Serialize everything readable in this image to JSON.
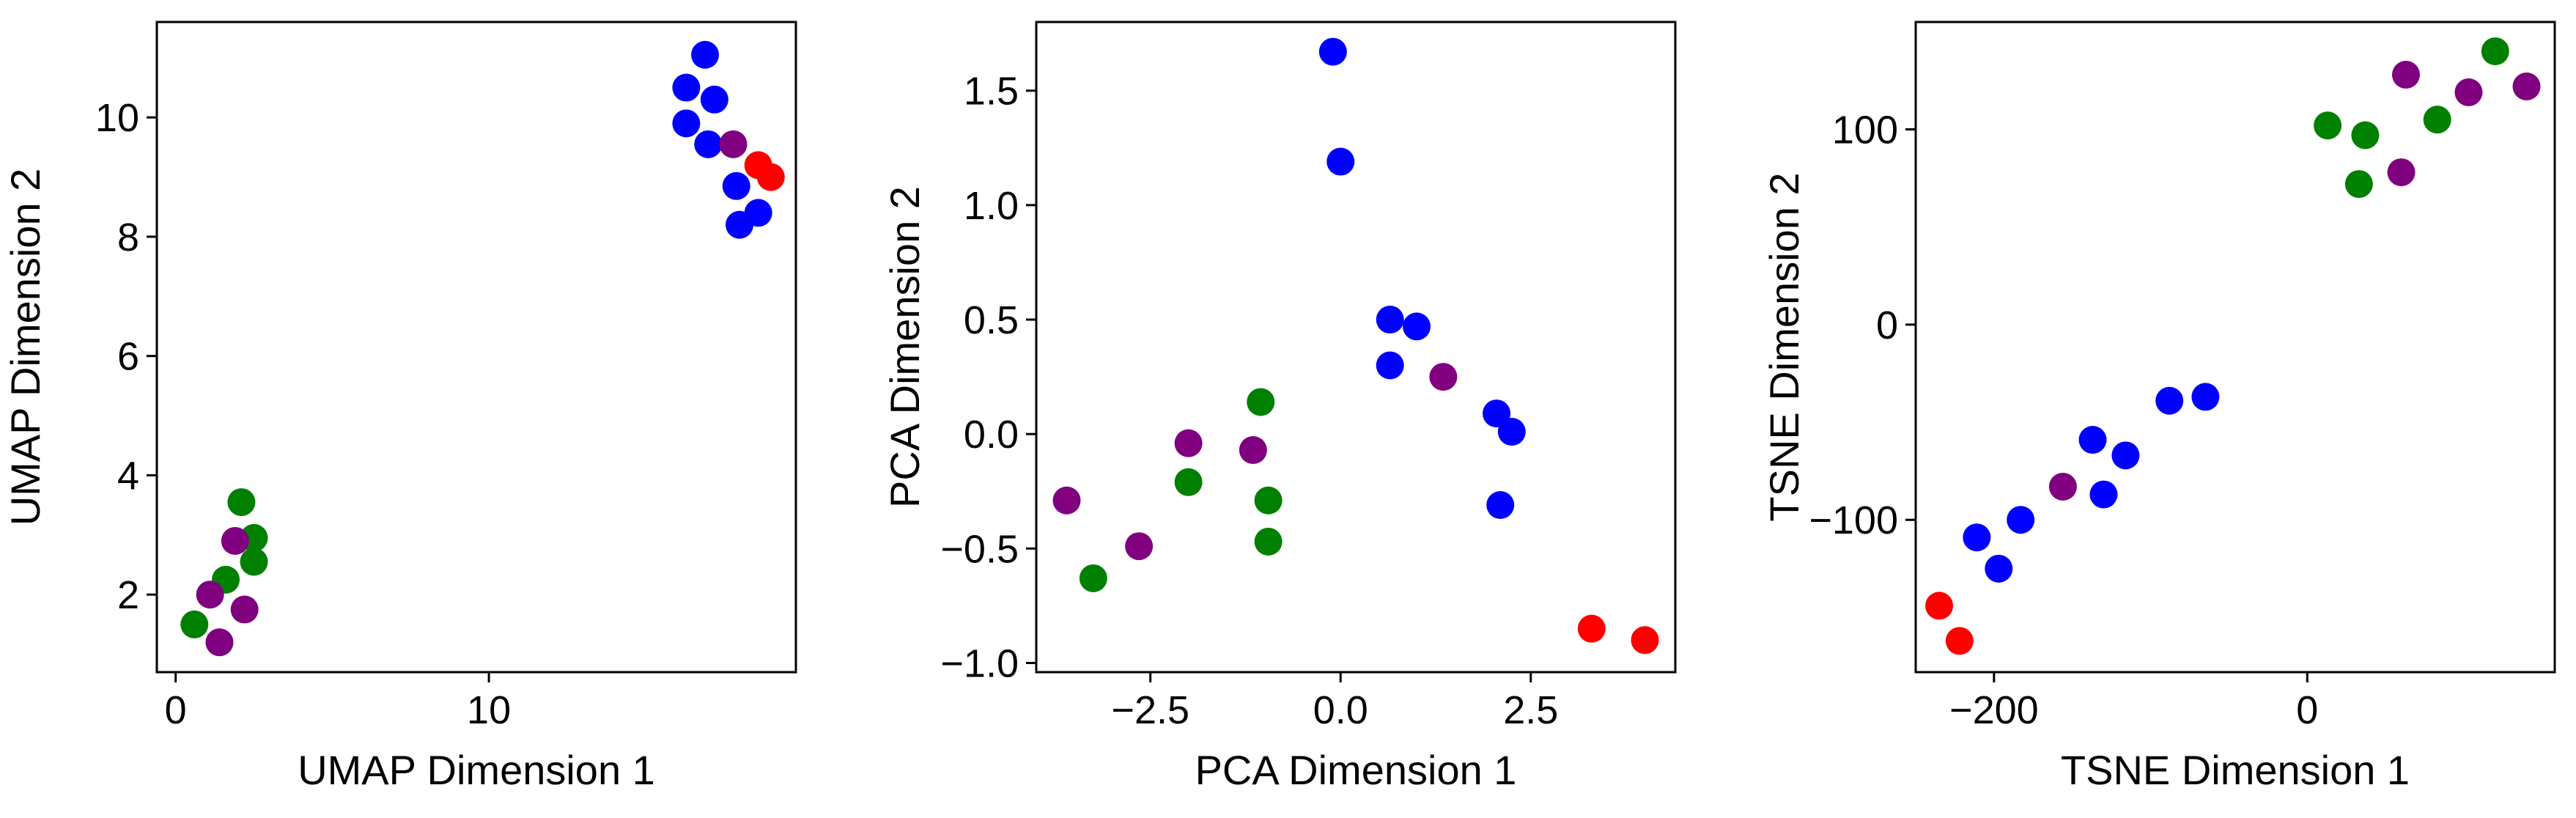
{
  "chart_data": [
    {
      "type": "scatter",
      "xlabel": "UMAP Dimension 1",
      "ylabel": "UMAP Dimension 2",
      "xlim": [
        -0.6,
        19.8
      ],
      "ylim": [
        0.7,
        11.6
      ],
      "xticks": [
        0,
        10
      ],
      "yticks": [
        2,
        4,
        6,
        8,
        10
      ],
      "xtick_labels": [
        "0",
        "10"
      ],
      "ytick_labels": [
        "2",
        "4",
        "6",
        "8",
        "10"
      ],
      "points": [
        {
          "x": 16.9,
          "y": 11.05,
          "color": "#0000ff"
        },
        {
          "x": 16.3,
          "y": 10.5,
          "color": "#0000ff"
        },
        {
          "x": 17.2,
          "y": 10.3,
          "color": "#0000ff"
        },
        {
          "x": 16.3,
          "y": 9.9,
          "color": "#0000ff"
        },
        {
          "x": 17.0,
          "y": 9.55,
          "color": "#0000ff"
        },
        {
          "x": 17.8,
          "y": 9.55,
          "color": "#800080"
        },
        {
          "x": 18.6,
          "y": 9.2,
          "color": "#ff0000"
        },
        {
          "x": 19.0,
          "y": 9.0,
          "color": "#ff0000"
        },
        {
          "x": 17.9,
          "y": 8.85,
          "color": "#0000ff"
        },
        {
          "x": 18.6,
          "y": 8.4,
          "color": "#0000ff"
        },
        {
          "x": 18.0,
          "y": 8.2,
          "color": "#0000ff"
        },
        {
          "x": 2.1,
          "y": 3.55,
          "color": "#008000"
        },
        {
          "x": 2.5,
          "y": 2.95,
          "color": "#008000"
        },
        {
          "x": 1.9,
          "y": 2.9,
          "color": "#800080"
        },
        {
          "x": 2.5,
          "y": 2.55,
          "color": "#008000"
        },
        {
          "x": 1.6,
          "y": 2.25,
          "color": "#008000"
        },
        {
          "x": 1.1,
          "y": 2.0,
          "color": "#800080"
        },
        {
          "x": 2.2,
          "y": 1.75,
          "color": "#800080"
        },
        {
          "x": 0.6,
          "y": 1.5,
          "color": "#008000"
        },
        {
          "x": 1.4,
          "y": 1.2,
          "color": "#800080"
        }
      ]
    },
    {
      "type": "scatter",
      "xlabel": "PCA Dimension 1",
      "ylabel": "PCA Dimension 2",
      "xlim": [
        -4.0,
        4.4
      ],
      "ylim": [
        -1.04,
        1.8
      ],
      "xticks": [
        -2.5,
        0.0,
        2.5
      ],
      "yticks": [
        -1.0,
        -0.5,
        0.0,
        0.5,
        1.0,
        1.5
      ],
      "xtick_labels": [
        "−2.5",
        "0.0",
        "2.5"
      ],
      "ytick_labels": [
        "−1.0",
        "−0.5",
        "0.0",
        "0.5",
        "1.0",
        "1.5"
      ],
      "points": [
        {
          "x": -0.1,
          "y": 1.67,
          "color": "#0000ff"
        },
        {
          "x": 0.0,
          "y": 1.19,
          "color": "#0000ff"
        },
        {
          "x": 0.65,
          "y": 0.5,
          "color": "#0000ff"
        },
        {
          "x": 1.0,
          "y": 0.47,
          "color": "#0000ff"
        },
        {
          "x": 0.65,
          "y": 0.3,
          "color": "#0000ff"
        },
        {
          "x": 1.35,
          "y": 0.25,
          "color": "#800080"
        },
        {
          "x": 2.05,
          "y": 0.09,
          "color": "#0000ff"
        },
        {
          "x": 2.25,
          "y": 0.01,
          "color": "#0000ff"
        },
        {
          "x": 2.1,
          "y": -0.31,
          "color": "#0000ff"
        },
        {
          "x": 3.3,
          "y": -0.85,
          "color": "#ff0000"
        },
        {
          "x": 4.0,
          "y": -0.9,
          "color": "#ff0000"
        },
        {
          "x": -1.05,
          "y": 0.14,
          "color": "#008000"
        },
        {
          "x": -2.0,
          "y": -0.04,
          "color": "#800080"
        },
        {
          "x": -1.15,
          "y": -0.07,
          "color": "#800080"
        },
        {
          "x": -2.0,
          "y": -0.21,
          "color": "#008000"
        },
        {
          "x": -0.95,
          "y": -0.29,
          "color": "#008000"
        },
        {
          "x": -3.6,
          "y": -0.29,
          "color": "#800080"
        },
        {
          "x": -2.65,
          "y": -0.49,
          "color": "#800080"
        },
        {
          "x": -0.95,
          "y": -0.47,
          "color": "#008000"
        },
        {
          "x": -3.25,
          "y": -0.63,
          "color": "#008000"
        }
      ]
    },
    {
      "type": "scatter",
      "xlabel": "TSNE Dimension 1",
      "ylabel": "TSNE Dimension 2",
      "xlim": [
        -250,
        158
      ],
      "ylim": [
        -178,
        155
      ],
      "xticks": [
        -200,
        0
      ],
      "yticks": [
        -100,
        0,
        100
      ],
      "xtick_labels": [
        "−200",
        "0"
      ],
      "ytick_labels": [
        "−100",
        "0",
        "100"
      ],
      "points": [
        {
          "x": 120,
          "y": 140,
          "color": "#008000"
        },
        {
          "x": 140,
          "y": 122,
          "color": "#800080"
        },
        {
          "x": 63,
          "y": 128,
          "color": "#800080"
        },
        {
          "x": 103,
          "y": 119,
          "color": "#800080"
        },
        {
          "x": 13,
          "y": 102,
          "color": "#008000"
        },
        {
          "x": 37,
          "y": 97,
          "color": "#008000"
        },
        {
          "x": 83,
          "y": 105,
          "color": "#008000"
        },
        {
          "x": 60,
          "y": 78,
          "color": "#800080"
        },
        {
          "x": 33,
          "y": 72,
          "color": "#008000"
        },
        {
          "x": -65,
          "y": -37,
          "color": "#0000ff"
        },
        {
          "x": -88,
          "y": -39,
          "color": "#0000ff"
        },
        {
          "x": -137,
          "y": -59,
          "color": "#0000ff"
        },
        {
          "x": -116,
          "y": -67,
          "color": "#0000ff"
        },
        {
          "x": -156,
          "y": -83,
          "color": "#800080"
        },
        {
          "x": -130,
          "y": -87,
          "color": "#0000ff"
        },
        {
          "x": -183,
          "y": -100,
          "color": "#0000ff"
        },
        {
          "x": -211,
          "y": -109,
          "color": "#0000ff"
        },
        {
          "x": -197,
          "y": -125,
          "color": "#0000ff"
        },
        {
          "x": -235,
          "y": -144,
          "color": "#ff0000"
        },
        {
          "x": -222,
          "y": -162,
          "color": "#ff0000"
        }
      ]
    }
  ]
}
